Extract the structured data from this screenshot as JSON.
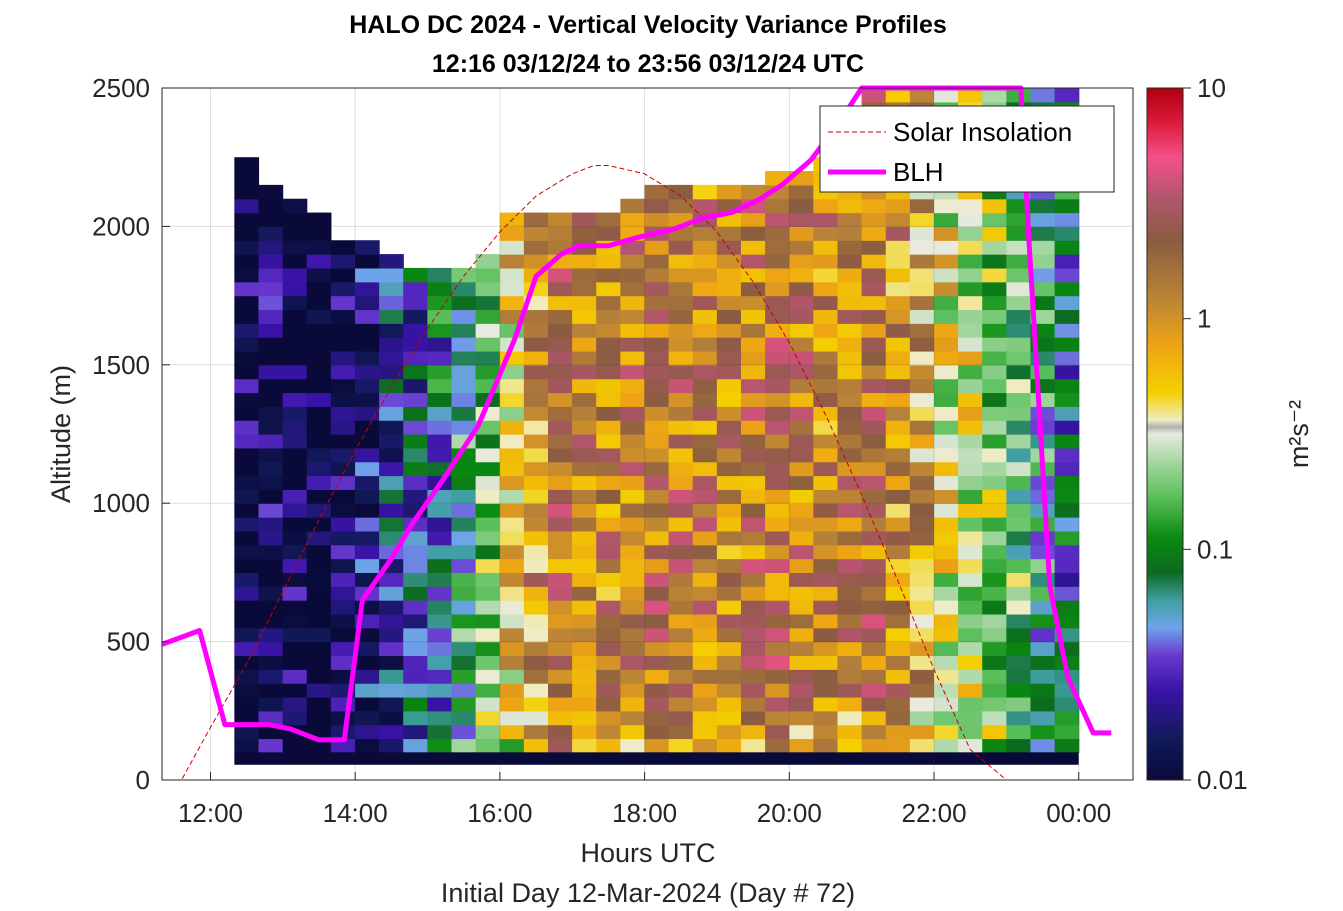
{
  "chart_data": {
    "type": "heatmap",
    "title": "HALO DC 2024 - Vertical Velocity Variance Profiles",
    "subtitle": "12:16 03/12/24 to 23:56 03/12/24  UTC",
    "xlabel": "Hours UTC",
    "xlabel2": "Initial Day 12-Mar-2024 (Day # 72)",
    "ylabel": "Altitude (m)",
    "colorbar_label": "m²s⁻²",
    "colorbar_scale": "log",
    "colorbar_range": [
      0.01,
      10
    ],
    "colorbar_ticks": [
      "10",
      "1",
      "0.1",
      "0.01"
    ],
    "xlim": [
      11.33,
      24.75
    ],
    "ylim": [
      0,
      2500
    ],
    "x_ticks": [
      12,
      14,
      16,
      18,
      20,
      22,
      24
    ],
    "x_tick_labels": [
      "12:00",
      "14:00",
      "16:00",
      "18:00",
      "20:00",
      "22:00",
      "00:00"
    ],
    "y_ticks": [
      0,
      500,
      1000,
      1500,
      2000,
      2500
    ],
    "y_tick_labels": [
      "0",
      "500",
      "1000",
      "1500",
      "2000",
      "2500"
    ],
    "grid": true,
    "legend_position": "top-right",
    "series": [
      {
        "name": "Solar Insolation",
        "style": "dashed",
        "color": "#cc0000",
        "note": "arc shape, plotted against altitude axis",
        "x": [
          11.4,
          11.6,
          12.0,
          12.5,
          13.0,
          13.5,
          14.0,
          14.5,
          15.0,
          15.5,
          16.0,
          16.5,
          17.0,
          17.3,
          17.5,
          18.0,
          18.5,
          19.0,
          19.5,
          20.0,
          20.5,
          21.0,
          21.5,
          22.0,
          22.5,
          23.0,
          23.4,
          23.6,
          24.0,
          24.6
        ],
        "y": [
          0,
          0,
          190,
          420,
          680,
          940,
          1190,
          1420,
          1630,
          1820,
          1980,
          2110,
          2190,
          2220,
          2220,
          2190,
          2110,
          1980,
          1800,
          1580,
          1320,
          1030,
          720,
          400,
          110,
          0,
          0,
          0,
          0,
          0
        ]
      },
      {
        "name": "BLH",
        "style": "solid",
        "color": "#ff00ff",
        "x": [
          11.33,
          11.85,
          12.2,
          12.8,
          13.1,
          13.5,
          13.85,
          14.1,
          14.5,
          14.8,
          15.2,
          15.7,
          16.2,
          16.5,
          16.85,
          17.1,
          17.5,
          17.9,
          18.4,
          18.8,
          19.2,
          19.6,
          19.9,
          20.3,
          20.7,
          21.0,
          23.2,
          23.3,
          23.6,
          23.85,
          24.2,
          24.45
        ],
        "y": [
          490,
          540,
          200,
          200,
          185,
          145,
          145,
          650,
          800,
          930,
          1080,
          1280,
          1590,
          1820,
          1900,
          1930,
          1930,
          1960,
          1990,
          2030,
          2050,
          2100,
          2150,
          2240,
          2380,
          2500,
          2500,
          2000,
          700,
          370,
          170,
          170
        ]
      }
    ],
    "heatmap_grid": {
      "x_start": 12.33,
      "x_end": 24.0,
      "y_start": 100,
      "y_end": 2500,
      "cols": 35,
      "rows": 48,
      "columns_profile": [
        {
          "x": 12.33,
          "top": 2250,
          "variance": 0.012
        },
        {
          "x": 12.67,
          "top": 2150,
          "variance": 0.014
        },
        {
          "x": 13.0,
          "top": 2100,
          "variance": 0.012
        },
        {
          "x": 13.33,
          "top": 2050,
          "variance": 0.011
        },
        {
          "x": 13.67,
          "top": 1950,
          "variance": 0.012
        },
        {
          "x": 14.0,
          "top": 1950,
          "variance": 0.02
        },
        {
          "x": 14.33,
          "top": 1900,
          "variance": 0.03
        },
        {
          "x": 14.67,
          "top": 1850,
          "variance": 0.04
        },
        {
          "x": 15.0,
          "top": 1850,
          "variance": 0.06
        },
        {
          "x": 15.33,
          "top": 1850,
          "variance": 0.1
        },
        {
          "x": 15.67,
          "top": 1900,
          "variance": 0.2
        },
        {
          "x": 16.0,
          "top": 2050,
          "variance": 0.5
        },
        {
          "x": 16.33,
          "top": 2050,
          "variance": 1.0
        },
        {
          "x": 16.67,
          "top": 2050,
          "variance": 1.5
        },
        {
          "x": 17.0,
          "top": 2050,
          "variance": 1.3
        },
        {
          "x": 17.33,
          "top": 2050,
          "variance": 1.2
        },
        {
          "x": 17.67,
          "top": 2100,
          "variance": 1.4
        },
        {
          "x": 18.0,
          "top": 2150,
          "variance": 1.6
        },
        {
          "x": 18.33,
          "top": 2150,
          "variance": 1.5
        },
        {
          "x": 18.67,
          "top": 2150,
          "variance": 1.3
        },
        {
          "x": 19.0,
          "top": 2150,
          "variance": 1.2
        },
        {
          "x": 19.33,
          "top": 2150,
          "variance": 1.5
        },
        {
          "x": 19.67,
          "top": 2200,
          "variance": 1.6
        },
        {
          "x": 20.0,
          "top": 2200,
          "variance": 1.4
        },
        {
          "x": 20.33,
          "top": 2250,
          "variance": 1.2
        },
        {
          "x": 20.67,
          "top": 2400,
          "variance": 1.3
        },
        {
          "x": 21.0,
          "top": 2500,
          "variance": 1.6
        },
        {
          "x": 21.33,
          "top": 2500,
          "variance": 1.1
        },
        {
          "x": 21.67,
          "top": 2500,
          "variance": 0.8
        },
        {
          "x": 22.0,
          "top": 2500,
          "variance": 0.4
        },
        {
          "x": 22.33,
          "top": 2500,
          "variance": 0.3
        },
        {
          "x": 22.67,
          "top": 2500,
          "variance": 0.2
        },
        {
          "x": 23.0,
          "top": 2500,
          "variance": 0.15
        },
        {
          "x": 23.33,
          "top": 2500,
          "variance": 0.09
        },
        {
          "x": 23.67,
          "top": 2500,
          "variance": 0.06
        }
      ]
    }
  }
}
